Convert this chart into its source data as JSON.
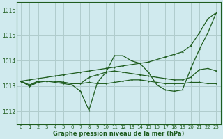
{
  "title": "Graphe pression niveau de la mer (hPa)",
  "background_color": "#d0eaee",
  "grid_color": "#b0cccc",
  "line_color": "#1e5c1e",
  "ylim": [
    1011.5,
    1016.3
  ],
  "yticks": [
    1012,
    1013,
    1014,
    1015,
    1016
  ],
  "xlim": [
    -0.5,
    23.5
  ],
  "xticks": [
    0,
    1,
    2,
    3,
    4,
    5,
    6,
    7,
    8,
    9,
    10,
    11,
    12,
    13,
    14,
    15,
    16,
    17,
    18,
    19,
    20,
    21,
    22,
    23
  ],
  "series": {
    "line1_straight": [
      1013.2,
      1013.25,
      1013.3,
      1013.35,
      1013.4,
      1013.45,
      1013.5,
      1013.55,
      1013.6,
      1013.65,
      1013.7,
      1013.75,
      1013.8,
      1013.85,
      1013.9,
      1013.95,
      1014.05,
      1014.15,
      1014.25,
      1014.35,
      1014.6,
      1015.1,
      1015.65,
      1015.9
    ],
    "line2_dip": [
      1013.2,
      1013.0,
      1013.2,
      1013.2,
      1013.15,
      1013.1,
      1013.05,
      1012.8,
      1012.05,
      1013.15,
      1013.55,
      1014.2,
      1014.2,
      1014.0,
      1013.9,
      1013.55,
      1013.05,
      1012.85,
      1012.8,
      1012.85,
      1013.7,
      1014.45,
      1015.1,
      1015.9
    ],
    "line3_flat": [
      1013.2,
      1013.0,
      1013.15,
      1013.2,
      1013.2,
      1013.15,
      1013.1,
      1013.1,
      1013.15,
      1013.1,
      1013.1,
      1013.15,
      1013.2,
      1013.25,
      1013.25,
      1013.2,
      1013.15,
      1013.1,
      1013.1,
      1013.1,
      1013.15,
      1013.15,
      1013.1,
      1013.1
    ],
    "line4_mid": [
      1013.2,
      1013.05,
      1013.2,
      1013.2,
      1013.2,
      1013.15,
      1013.1,
      1013.1,
      1013.35,
      1013.45,
      1013.55,
      1013.6,
      1013.55,
      1013.5,
      1013.45,
      1013.4,
      1013.35,
      1013.3,
      1013.25,
      1013.25,
      1013.35,
      1013.65,
      1013.7,
      1013.6
    ]
  }
}
